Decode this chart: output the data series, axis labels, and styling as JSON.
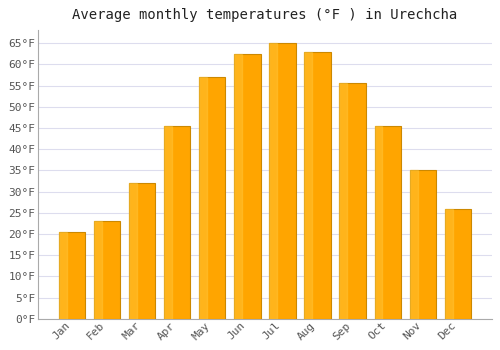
{
  "title": "Average monthly temperatures (°F ) in Urechcha",
  "months": [
    "Jan",
    "Feb",
    "Mar",
    "Apr",
    "May",
    "Jun",
    "Jul",
    "Aug",
    "Sep",
    "Oct",
    "Nov",
    "Dec"
  ],
  "values": [
    20.5,
    23.0,
    32.0,
    45.5,
    57.0,
    62.5,
    65.0,
    63.0,
    55.5,
    45.5,
    35.0,
    26.0
  ],
  "bar_color": "#FFA500",
  "bar_edge_color": "#CC8800",
  "background_color": "#FFFFFF",
  "plot_bg_color": "#FFFFFF",
  "grid_color": "#DDDDEE",
  "text_color": "#555555",
  "title_color": "#222222",
  "ylim": [
    0,
    68
  ],
  "yticks": [
    0,
    5,
    10,
    15,
    20,
    25,
    30,
    35,
    40,
    45,
    50,
    55,
    60,
    65
  ],
  "title_fontsize": 10,
  "tick_fontsize": 8
}
